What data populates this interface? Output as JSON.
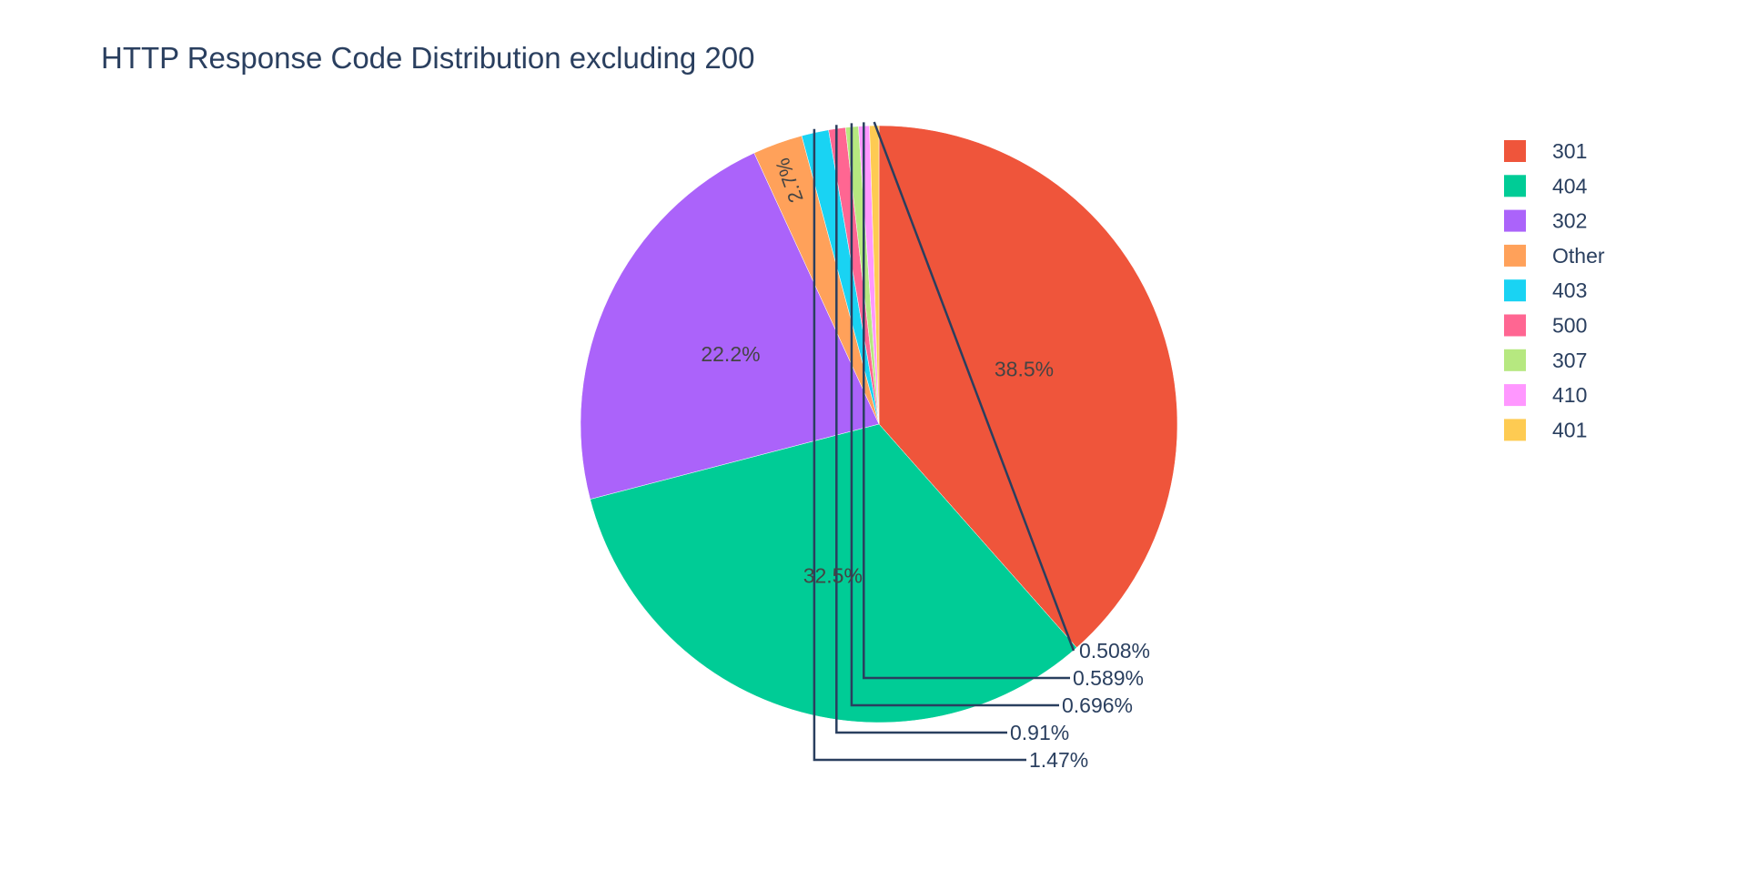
{
  "chart_data": {
    "type": "pie",
    "title": "HTTP Response Code Distribution excluding 200",
    "labels": [
      "301",
      "404",
      "302",
      "Other",
      "403",
      "500",
      "307",
      "410",
      "401"
    ],
    "values": [
      38.5,
      32.5,
      22.2,
      2.7,
      1.47,
      0.91,
      0.696,
      0.589,
      0.508
    ],
    "text_labels": [
      "38.5%",
      "32.5%",
      "22.2%",
      "2.7%",
      "1.47%",
      "0.91%",
      "0.696%",
      "0.589%",
      "0.508%"
    ],
    "colors": [
      "#EF553B",
      "#00CC96",
      "#AB63FA",
      "#FFA15A",
      "#19D3F3",
      "#FF6692",
      "#B6E880",
      "#FF97FF",
      "#FECB52"
    ],
    "direction": "clockwise",
    "rotation_start": "12 o'clock",
    "legend_position": "top-right"
  }
}
